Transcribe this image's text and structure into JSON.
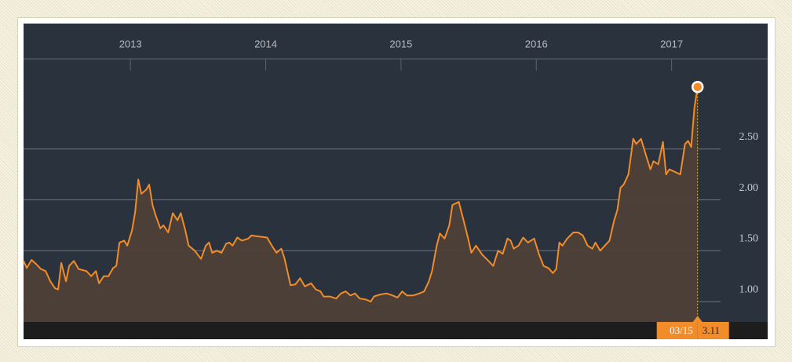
{
  "chart_data": {
    "type": "line",
    "x": [
      2012.21,
      2012.234,
      2012.269,
      2012.303,
      2012.338,
      2012.373,
      2012.408,
      2012.443,
      2012.466,
      2012.489,
      2012.524,
      2012.547,
      2012.582,
      2012.617,
      2012.675,
      2012.71,
      2012.745,
      2012.768,
      2012.803,
      2012.837,
      2012.872,
      2012.896,
      2012.919,
      2012.954,
      2012.977,
      2013.012,
      2013.035,
      2013.058,
      2013.081,
      2013.116,
      2013.139,
      2013.163,
      2013.186,
      2013.221,
      2013.244,
      2013.279,
      2013.313,
      2013.348,
      2013.372,
      2013.406,
      2013.43,
      2013.476,
      2013.522,
      2013.557,
      2013.581,
      2013.604,
      2013.639,
      2013.673,
      2013.708,
      2013.731,
      2013.755,
      2013.79,
      2013.824,
      2013.871,
      2013.894,
      2013.952,
      2014.01,
      2014.045,
      2014.08,
      2014.115,
      2014.138,
      2014.184,
      2014.219,
      2014.254,
      2014.289,
      2014.335,
      2014.37,
      2014.405,
      2014.428,
      2014.475,
      2014.521,
      2014.556,
      2014.591,
      2014.626,
      2014.66,
      2014.695,
      2014.742,
      2014.776,
      2014.8,
      2014.846,
      2014.893,
      2014.939,
      2014.974,
      2015.009,
      2015.044,
      2015.09,
      2015.136,
      2015.171,
      2015.206,
      2015.229,
      2015.264,
      2015.287,
      2015.322,
      2015.357,
      2015.38,
      2015.427,
      2015.462,
      2015.496,
      2015.52,
      2015.554,
      2015.601,
      2015.647,
      2015.682,
      2015.717,
      2015.752,
      2015.787,
      2015.81,
      2015.833,
      2015.868,
      2015.903,
      2015.938,
      2015.984,
      2016.019,
      2016.054,
      2016.089,
      2016.123,
      2016.147,
      2016.17,
      2016.193,
      2016.228,
      2016.274,
      2016.309,
      2016.344,
      2016.379,
      2016.414,
      2016.437,
      2016.472,
      2016.507,
      2016.541,
      2016.576,
      2016.599,
      2016.623,
      2016.646,
      2016.681,
      2016.716,
      2016.739,
      2016.774,
      2016.808,
      2016.843,
      2016.866,
      2016.901,
      2016.936,
      2016.959,
      2016.983,
      2017.017,
      2017.064,
      2017.099,
      2017.122,
      2017.145,
      2017.168,
      2017.192
    ],
    "values": [
      1.4,
      1.33,
      1.41,
      1.37,
      1.32,
      1.3,
      1.2,
      1.13,
      1.12,
      1.38,
      1.2,
      1.35,
      1.4,
      1.32,
      1.3,
      1.25,
      1.3,
      1.18,
      1.25,
      1.25,
      1.33,
      1.35,
      1.58,
      1.6,
      1.55,
      1.7,
      1.88,
      2.2,
      2.06,
      2.1,
      2.15,
      1.95,
      1.85,
      1.72,
      1.75,
      1.68,
      1.87,
      1.8,
      1.87,
      1.7,
      1.55,
      1.5,
      1.42,
      1.55,
      1.58,
      1.48,
      1.5,
      1.48,
      1.57,
      1.58,
      1.55,
      1.63,
      1.6,
      1.62,
      1.65,
      1.64,
      1.63,
      1.55,
      1.48,
      1.52,
      1.43,
      1.16,
      1.17,
      1.23,
      1.15,
      1.18,
      1.12,
      1.1,
      1.05,
      1.05,
      1.03,
      1.08,
      1.1,
      1.06,
      1.08,
      1.03,
      1.02,
      1.0,
      1.05,
      1.07,
      1.08,
      1.06,
      1.04,
      1.1,
      1.06,
      1.06,
      1.08,
      1.1,
      1.2,
      1.3,
      1.55,
      1.67,
      1.62,
      1.75,
      1.95,
      1.98,
      1.8,
      1.62,
      1.48,
      1.55,
      1.46,
      1.4,
      1.35,
      1.5,
      1.47,
      1.62,
      1.6,
      1.52,
      1.55,
      1.63,
      1.58,
      1.62,
      1.47,
      1.35,
      1.33,
      1.28,
      1.32,
      1.58,
      1.55,
      1.62,
      1.68,
      1.68,
      1.65,
      1.55,
      1.52,
      1.58,
      1.5,
      1.55,
      1.6,
      1.8,
      1.9,
      2.12,
      2.15,
      2.25,
      2.6,
      2.55,
      2.6,
      2.45,
      2.3,
      2.38,
      2.35,
      2.57,
      2.25,
      2.3,
      2.28,
      2.25,
      2.55,
      2.58,
      2.52,
      2.9,
      3.11
    ],
    "color": "#f28c28",
    "xlim": [
      2012.21,
      2017.71
    ],
    "xticks": [
      2013,
      2014,
      2015,
      2016,
      2017
    ],
    "ylim": [
      0.8,
      3.27
    ],
    "yticks": [
      {
        "value": 1,
        "label": "1.00"
      },
      {
        "value": 1.5,
        "label": "1.50"
      },
      {
        "value": 2,
        "label": "2.00"
      },
      {
        "value": 2.5,
        "label": "2.50"
      }
    ],
    "grid": true,
    "last_date_label": "03/15"
  }
}
